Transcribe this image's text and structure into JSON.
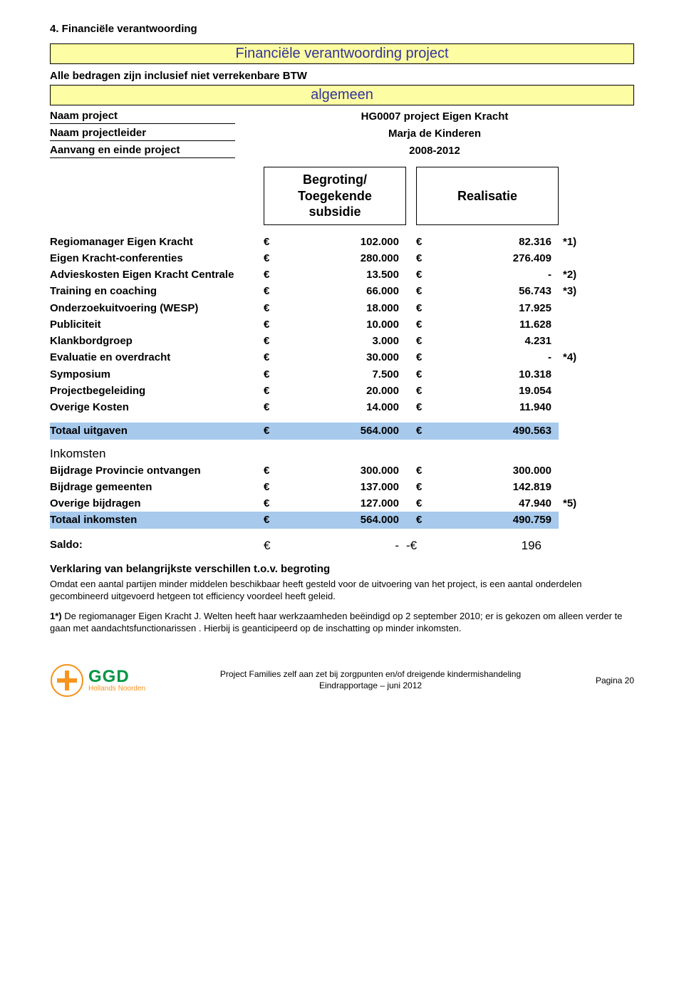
{
  "section_number_title": "4.  Financiële verantwoording",
  "banner_main": "Financiële verantwoording project",
  "subtitle": "Alle bedragen zijn inclusief niet verrekenbare BTW",
  "banner_alg": "algemeen",
  "meta": [
    {
      "label": "Naam project",
      "value": "HG0007 project Eigen Kracht"
    },
    {
      "label": "Naam projectleider",
      "value": "Marja de Kinderen"
    },
    {
      "label": "Aanvang en einde project",
      "value": "2008-2012"
    }
  ],
  "headers": {
    "begroting": "Begroting/\nToegekende\nsubsidie",
    "realisatie": "Realisatie"
  },
  "uitgaven_rows": [
    {
      "label": "Regiomanager Eigen Kracht",
      "b": "102.000",
      "r": "82.316",
      "note": "*1)"
    },
    {
      "label": "Eigen Kracht-conferenties",
      "b": "280.000",
      "r": "276.409",
      "note": ""
    },
    {
      "label": "Advieskosten Eigen Kracht Centrale",
      "b": "13.500",
      "r": "-",
      "note": "*2)"
    },
    {
      "label": "Training en coaching",
      "b": "66.000",
      "r": "56.743",
      "note": "*3)"
    },
    {
      "label": "Onderzoekuitvoering (WESP)",
      "b": "18.000",
      "r": "17.925",
      "note": ""
    },
    {
      "label": "Publiciteit",
      "b": "10.000",
      "r": "11.628",
      "note": ""
    },
    {
      "label": "Klankbordgroep",
      "b": "3.000",
      "r": "4.231",
      "note": ""
    },
    {
      "label": "Evaluatie en overdracht",
      "b": "30.000",
      "r": "-",
      "note": "*4)"
    },
    {
      "label": "Symposium",
      "b": "7.500",
      "r": "10.318",
      "note": ""
    },
    {
      "label": "Projectbegeleiding",
      "b": "20.000",
      "r": "19.054",
      "note": ""
    },
    {
      "label": "Overige Kosten",
      "b": "14.000",
      "r": "11.940",
      "note": ""
    }
  ],
  "totaal_uitgaven": {
    "label": "Totaal uitgaven",
    "b": "564.000",
    "r": "490.563"
  },
  "inkomsten_title": "Inkomsten",
  "inkomsten_rows": [
    {
      "label": "Bijdrage Provincie ontvangen",
      "b": "300.000",
      "r": "300.000",
      "note": ""
    },
    {
      "label": "Bijdrage gemeenten",
      "b": "137.000",
      "r": "142.819",
      "note": ""
    },
    {
      "label": "Overige bijdragen",
      "b": "127.000",
      "r": "47.940",
      "note": "*5)"
    }
  ],
  "totaal_inkomsten": {
    "label": "Totaal inkomsten",
    "b": "564.000",
    "r": "490.759"
  },
  "saldo": {
    "label": "Saldo:",
    "b": "-",
    "r_prefix": "-€",
    "r": "196"
  },
  "explain_title": "Verklaring van belangrijkste verschillen t.o.v. begroting",
  "explain_p1": "Omdat een aantal partijen minder middelen beschikbaar heeft gesteld voor de uitvoering van het project, is een aantal onderdelen gecombineerd uitgevoerd hetgeen tot efficiency voordeel heeft geleid.",
  "explain_p2_bold": "1*)",
  "explain_p2": " De regiomanager Eigen Kracht J. Welten heeft haar werkzaamheden beëindigd op 2  september 2010; er is gekozen om alleen verder te gaan met aandachtsfunctionarissen . Hierbij is geanticipeerd op de inschatting op minder inkomsten.",
  "footer": {
    "ggd_big": "GGD",
    "ggd_small": "Hollands Noorden",
    "center_line1": "Project Families zelf aan zet bij zorgpunten en/of dreigende kindermishandeling",
    "center_line2": "Eindrapportage – juni 2012",
    "right": "Pagina 20"
  },
  "euro": "€",
  "colors": {
    "banner_bg": "#fdfda3",
    "banner_text": "#333399",
    "highlight_bg": "#a6c9ec",
    "ggd_green": "#009543",
    "ggd_orange": "#f7941d"
  }
}
